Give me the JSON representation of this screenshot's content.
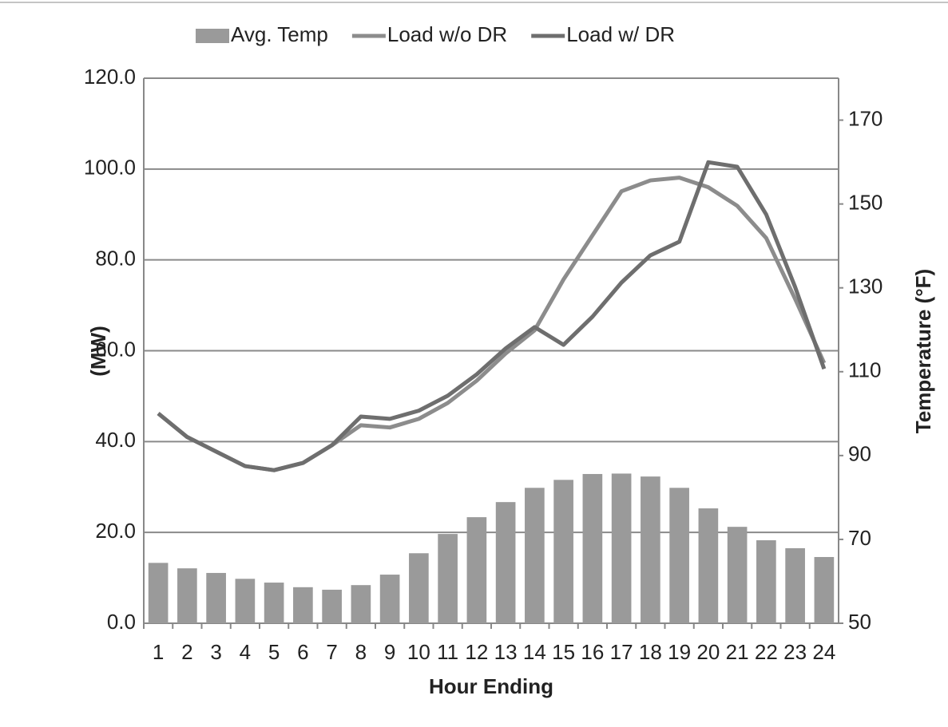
{
  "chart_data": {
    "type": "combo",
    "x_label": "Hour Ending",
    "y_label": "(MW)",
    "y2_label": "Temperature (°F)",
    "categories": [
      "1",
      "2",
      "3",
      "4",
      "5",
      "6",
      "7",
      "8",
      "9",
      "10",
      "11",
      "12",
      "13",
      "14",
      "15",
      "16",
      "17",
      "18",
      "19",
      "20",
      "21",
      "22",
      "23",
      "24"
    ],
    "series": [
      {
        "name": "Avg. Temp",
        "type": "bar",
        "axis": "y2",
        "color": "#9a9a9a",
        "values": [
          64.4,
          63.1,
          62.0,
          60.6,
          59.7,
          58.6,
          58.0,
          59.1,
          61.6,
          66.7,
          71.3,
          75.3,
          78.9,
          82.3,
          84.2,
          85.6,
          85.7,
          85.0,
          82.3,
          77.4,
          73.0,
          69.8,
          67.9,
          65.8
        ]
      },
      {
        "name": "Load w/o DR",
        "type": "line",
        "color": "#8c8c8c",
        "values": [
          46.2,
          41.0,
          37.8,
          34.6,
          33.7,
          35.3,
          39.2,
          43.6,
          43.1,
          45.0,
          48.5,
          53.4,
          59.4,
          64.5,
          75.7,
          85.4,
          95.1,
          97.5,
          98.1,
          96.0,
          91.9,
          84.8,
          71.4,
          57.3
        ]
      },
      {
        "name": "Load w/ DR",
        "type": "line",
        "color": "#6e6e6e",
        "values": [
          46.2,
          41.0,
          37.8,
          34.6,
          33.7,
          35.3,
          39.2,
          45.5,
          45.0,
          46.8,
          50.1,
          54.8,
          60.5,
          65.2,
          61.3,
          67.5,
          75.0,
          81.0,
          84.0,
          101.5,
          100.5,
          90.0,
          74.0,
          56.0
        ]
      }
    ],
    "ylim": [
      0,
      120
    ],
    "yticks": [
      {
        "value": 0,
        "label": "0.0"
      },
      {
        "value": 20,
        "label": "20.0"
      },
      {
        "value": 40,
        "label": "40.0"
      },
      {
        "value": 60,
        "label": "60.0"
      },
      {
        "value": 80,
        "label": "80.0"
      },
      {
        "value": 100,
        "label": "100.0"
      },
      {
        "value": 120,
        "label": "120.0"
      }
    ],
    "y2lim": [
      50,
      180
    ],
    "y2ticks": [
      50,
      70,
      90,
      110,
      130,
      150,
      170
    ],
    "grid": true,
    "legend": "top"
  }
}
